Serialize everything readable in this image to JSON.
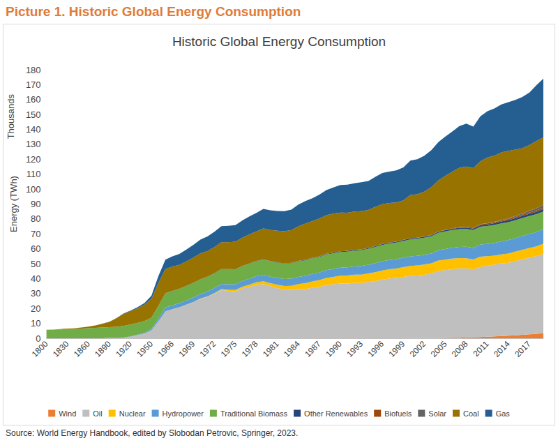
{
  "heading": "Picture 1. Historic Global Energy Consumption",
  "source": "Source: World Energy Handbook, edited by Slobodan Petrovic, Springer, 2023.",
  "chart_data": {
    "type": "area",
    "title": "Historic Global Energy Consumption",
    "ylabel": "Energy (TWh)",
    "annotations": [
      "Thousands"
    ],
    "stacked": true,
    "grid": false,
    "legend": "bottom",
    "ylim": [
      0,
      180
    ],
    "yticks": [
      0,
      10,
      20,
      30,
      40,
      50,
      60,
      70,
      80,
      90,
      100,
      110,
      120,
      130,
      140,
      150,
      160,
      170,
      180
    ],
    "categories": [
      "1800",
      null,
      null,
      "1830",
      null,
      null,
      "1860",
      null,
      null,
      "1890",
      null,
      null,
      "1920",
      null,
      null,
      "1950",
      null,
      null,
      "1966",
      null,
      null,
      "1969",
      null,
      null,
      "1972",
      null,
      null,
      "1975",
      null,
      null,
      "1978",
      null,
      null,
      "1981",
      null,
      null,
      "1984",
      null,
      null,
      "1987",
      null,
      null,
      "1990",
      null,
      null,
      "1993",
      null,
      null,
      "1996",
      null,
      null,
      "1999",
      null,
      null,
      "2002",
      null,
      null,
      "2005",
      null,
      null,
      "2008",
      null,
      null,
      "2011",
      null,
      null,
      "2014",
      null,
      null,
      "2017",
      null,
      null
    ],
    "series": [
      {
        "name": "Wind",
        "color": "#ED7D31",
        "values": [
          0,
          0,
          0,
          0,
          0,
          0,
          0,
          0,
          0,
          0,
          0,
          0,
          0,
          0,
          0,
          0,
          0,
          0,
          0,
          0,
          0,
          0,
          0,
          0,
          0,
          0,
          0,
          0,
          0,
          0,
          0,
          0,
          0,
          0,
          0,
          0,
          0,
          0,
          0,
          0,
          0,
          0,
          0.01,
          0.01,
          0.01,
          0.02,
          0.02,
          0.02,
          0.03,
          0.03,
          0.04,
          0.05,
          0.08,
          0.1,
          0.13,
          0.16,
          0.2,
          0.25,
          0.32,
          0.4,
          0.53,
          0.67,
          0.84,
          1.07,
          1.27,
          1.5,
          1.7,
          1.98,
          2.3,
          2.7,
          3.0,
          3.4
        ]
      },
      {
        "name": "Oil",
        "color": "#BFBFBF",
        "values": [
          0,
          0,
          0,
          0,
          0,
          0,
          0,
          0,
          0.05,
          0.2,
          0.2,
          0.4,
          1.1,
          2.1,
          3.1,
          5.4,
          11.5,
          18.1,
          19.4,
          20.7,
          22.4,
          24.2,
          26.4,
          27.8,
          29.9,
          32.4,
          31.8,
          31.4,
          33.4,
          34.5,
          35.8,
          36.4,
          34.9,
          33.6,
          32.6,
          32.4,
          33.0,
          33.0,
          33.9,
          34.5,
          35.6,
          36.2,
          36.7,
          36.7,
          37.2,
          37.0,
          37.7,
          38.3,
          39.2,
          40.1,
          40.4,
          41.1,
          41.8,
          42.0,
          42.4,
          43.3,
          44.9,
          45.5,
          46.0,
          46.5,
          46.3,
          45.5,
          47.0,
          47.5,
          48.0,
          48.6,
          48.9,
          49.8,
          50.6,
          51.3,
          52.0,
          53.0
        ]
      },
      {
        "name": "Nuclear",
        "color": "#FFC000",
        "values": [
          0,
          0,
          0,
          0,
          0,
          0,
          0,
          0,
          0,
          0,
          0,
          0,
          0,
          0,
          0,
          0,
          0,
          0.07,
          0.1,
          0.12,
          0.15,
          0.17,
          0.22,
          0.31,
          0.41,
          0.56,
          0.72,
          1.0,
          1.2,
          1.5,
          1.7,
          1.8,
          2.0,
          2.3,
          2.5,
          2.8,
          3.3,
          3.9,
          4.2,
          4.5,
          4.9,
          5.0,
          5.2,
          5.4,
          5.5,
          5.7,
          5.8,
          6.0,
          6.2,
          6.1,
          6.3,
          6.5,
          6.6,
          6.8,
          6.9,
          6.8,
          7.0,
          7.0,
          7.1,
          6.9,
          6.8,
          6.7,
          6.9,
          6.5,
          6.1,
          6.1,
          6.2,
          6.3,
          6.4,
          6.5,
          6.6,
          6.9
        ]
      },
      {
        "name": "Hydropower",
        "color": "#5B9BD5",
        "values": [
          0,
          0,
          0,
          0,
          0,
          0,
          0,
          0,
          0,
          0,
          0.05,
          0.1,
          0.2,
          0.3,
          0.5,
          0.9,
          1.6,
          2.5,
          2.6,
          2.7,
          2.8,
          3.0,
          3.1,
          3.2,
          3.3,
          3.4,
          3.7,
          3.8,
          3.8,
          3.9,
          4.1,
          4.3,
          4.4,
          4.5,
          4.6,
          4.8,
          4.9,
          5.0,
          5.1,
          5.1,
          5.2,
          5.2,
          5.4,
          5.5,
          5.5,
          5.8,
          5.8,
          6.1,
          6.2,
          6.3,
          6.3,
          6.4,
          6.5,
          6.4,
          6.5,
          6.5,
          6.9,
          7.1,
          7.3,
          7.4,
          7.7,
          7.7,
          8.1,
          8.2,
          8.6,
          8.8,
          9.0,
          9.0,
          9.3,
          9.4,
          9.6,
          9.7
        ]
      },
      {
        "name": "Traditional Biomass",
        "color": "#70AD47",
        "values": [
          5.6,
          5.8,
          6.0,
          6.2,
          6.4,
          6.6,
          6.8,
          7.0,
          7.2,
          7.3,
          7.5,
          7.8,
          7.9,
          7.9,
          8.0,
          7.5,
          8.6,
          9.5,
          9.6,
          9.6,
          9.7,
          9.7,
          9.8,
          9.8,
          9.9,
          9.9,
          10.0,
          10.0,
          10.0,
          10.1,
          10.1,
          10.2,
          10.2,
          10.2,
          10.3,
          10.3,
          10.3,
          10.4,
          10.4,
          10.4,
          10.5,
          10.5,
          10.5,
          10.5,
          10.6,
          10.6,
          10.6,
          10.8,
          10.9,
          11.0,
          11.1,
          11.2,
          11.3,
          11.4,
          11.5,
          11.6,
          11.7,
          11.8,
          11.9,
          12.0,
          12.0,
          12.0,
          12.0,
          12.0,
          12.0,
          12.0,
          12.0,
          12.0,
          12.0,
          12.0,
          12.0,
          12.0
        ]
      },
      {
        "name": "Other Renewables",
        "color": "#264478",
        "values": [
          0,
          0,
          0,
          0,
          0,
          0,
          0,
          0,
          0,
          0,
          0,
          0,
          0,
          0,
          0,
          0,
          0,
          0.1,
          0.1,
          0.1,
          0.1,
          0.1,
          0.1,
          0.1,
          0.12,
          0.12,
          0.13,
          0.13,
          0.14,
          0.15,
          0.16,
          0.17,
          0.18,
          0.2,
          0.22,
          0.25,
          0.28,
          0.31,
          0.34,
          0.37,
          0.4,
          0.44,
          0.47,
          0.5,
          0.52,
          0.54,
          0.55,
          0.57,
          0.58,
          0.6,
          0.62,
          0.64,
          0.66,
          0.66,
          0.7,
          0.72,
          0.76,
          0.8,
          0.84,
          0.88,
          0.93,
          0.97,
          1.05,
          1.1,
          1.18,
          1.26,
          1.33,
          1.4,
          1.45,
          1.5,
          1.56,
          1.6
        ]
      },
      {
        "name": "Biofuels",
        "color": "#9E480E",
        "values": [
          0,
          0,
          0,
          0,
          0,
          0,
          0,
          0,
          0,
          0,
          0,
          0,
          0,
          0,
          0,
          0,
          0,
          0,
          0,
          0,
          0,
          0,
          0,
          0,
          0,
          0,
          0,
          0,
          0,
          0,
          0,
          0,
          0.05,
          0.06,
          0.07,
          0.08,
          0.09,
          0.1,
          0.1,
          0.1,
          0.1,
          0.1,
          0.1,
          0.1,
          0.1,
          0.1,
          0.11,
          0.11,
          0.12,
          0.12,
          0.12,
          0.12,
          0.12,
          0.13,
          0.15,
          0.18,
          0.2,
          0.23,
          0.3,
          0.38,
          0.47,
          0.53,
          0.61,
          0.62,
          0.62,
          0.68,
          0.76,
          0.79,
          0.8,
          0.85,
          0.96,
          1.0
        ]
      },
      {
        "name": "Solar",
        "color": "#636363",
        "values": [
          0,
          0,
          0,
          0,
          0,
          0,
          0,
          0,
          0,
          0,
          0,
          0,
          0,
          0,
          0,
          0,
          0,
          0,
          0,
          0,
          0,
          0,
          0,
          0,
          0,
          0,
          0,
          0,
          0,
          0,
          0,
          0,
          0,
          0,
          0,
          0,
          0,
          0,
          0,
          0,
          0,
          0,
          0,
          0,
          0,
          0,
          0,
          0,
          0,
          0,
          0,
          0,
          0.003,
          0.004,
          0.005,
          0.006,
          0.008,
          0.01,
          0.014,
          0.02,
          0.03,
          0.05,
          0.08,
          0.17,
          0.26,
          0.36,
          0.5,
          0.66,
          0.86,
          1.16,
          1.5,
          1.8
        ]
      },
      {
        "name": "Coal",
        "color": "#997300",
        "values": [
          0.1,
          0.1,
          0.2,
          0.3,
          0.4,
          0.6,
          1.0,
          1.6,
          2.5,
          3.5,
          5.7,
          8.0,
          9.0,
          9.8,
          11.0,
          12.6,
          15.4,
          16.1,
          16.3,
          16.0,
          16.4,
          16.9,
          17.3,
          17.2,
          17.5,
          18.0,
          18.0,
          18.4,
          18.9,
          19.5,
          19.8,
          20.8,
          20.9,
          21.2,
          21.5,
          22.0,
          23.2,
          24.2,
          24.5,
          25.3,
          25.8,
          26.1,
          25.9,
          25.4,
          25.5,
          25.4,
          25.5,
          26.2,
          26.6,
          26.5,
          26.2,
          26.4,
          29.0,
          29.1,
          30.0,
          32.1,
          34.1,
          36.2,
          37.9,
          39.8,
          40.4,
          39.9,
          42.1,
          44.1,
          44.4,
          45.3,
          45.3,
          44.5,
          43.7,
          44.1,
          45.0,
          45.3
        ]
      },
      {
        "name": "Gas",
        "color": "#255E91",
        "values": [
          0,
          0,
          0,
          0,
          0,
          0,
          0,
          0,
          0.05,
          0.1,
          0.1,
          0.3,
          0.4,
          0.7,
          1.0,
          2.1,
          4.6,
          6.3,
          6.8,
          7.3,
          7.9,
          8.6,
          9.2,
          9.8,
          10.3,
          10.8,
          11.0,
          11.1,
          11.6,
          12.0,
          12.4,
          13.1,
          13.2,
          13.3,
          13.4,
          13.6,
          14.6,
          15.1,
          15.3,
          16.1,
          16.8,
          17.6,
          18.5,
          18.9,
          19.0,
          19.4,
          19.4,
          20.1,
          21.0,
          21.0,
          21.5,
          22.1,
          23.0,
          23.4,
          24.1,
          24.8,
          25.7,
          26.3,
          27.0,
          28.0,
          28.7,
          27.9,
          30.1,
          30.9,
          31.6,
          32.1,
          32.6,
          33.4,
          34.3,
          35.2,
          37.4,
          39.3
        ]
      }
    ]
  }
}
